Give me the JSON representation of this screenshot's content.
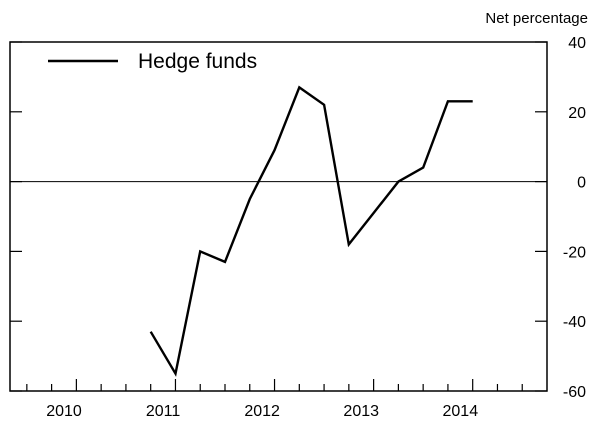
{
  "chart_data": {
    "type": "line",
    "title": "",
    "xlabel": "",
    "ylabel": "Net percentage",
    "ylim": [
      -60,
      40
    ],
    "yticks": [
      40,
      20,
      0,
      -20,
      -40,
      -60
    ],
    "xlim": [
      2009.33,
      2014.75
    ],
    "xtick_labels": [
      "2010",
      "2011",
      "2012",
      "2013",
      "2014"
    ],
    "xtick_centers": [
      2009.875,
      2010.875,
      2011.875,
      2012.875,
      2013.875
    ],
    "xtick_minor": [
      2009.5,
      2009.75,
      2010.0,
      2010.25,
      2010.5,
      2010.75,
      2011.0,
      2011.25,
      2011.5,
      2011.75,
      2012.0,
      2012.25,
      2012.5,
      2012.75,
      2013.0,
      2013.25,
      2013.5,
      2013.75,
      2014.0,
      2014.25,
      2014.5
    ],
    "xtick_major": [
      2010.0,
      2011.0,
      2012.0,
      2013.0,
      2014.0
    ],
    "zero_line": true,
    "grid": false,
    "legend_position": "top-left",
    "series": [
      {
        "name": "Hedge funds",
        "color": "#000000",
        "x": [
          2010.75,
          2011.0,
          2011.25,
          2011.5,
          2011.75,
          2012.0,
          2012.25,
          2012.5,
          2012.75,
          2013.0,
          2013.25,
          2013.5,
          2013.75,
          2014.0
        ],
        "y": [
          -43,
          -55,
          -20,
          -23,
          -5,
          9,
          27,
          22,
          -18,
          -9,
          0,
          4,
          23,
          23
        ]
      }
    ]
  }
}
